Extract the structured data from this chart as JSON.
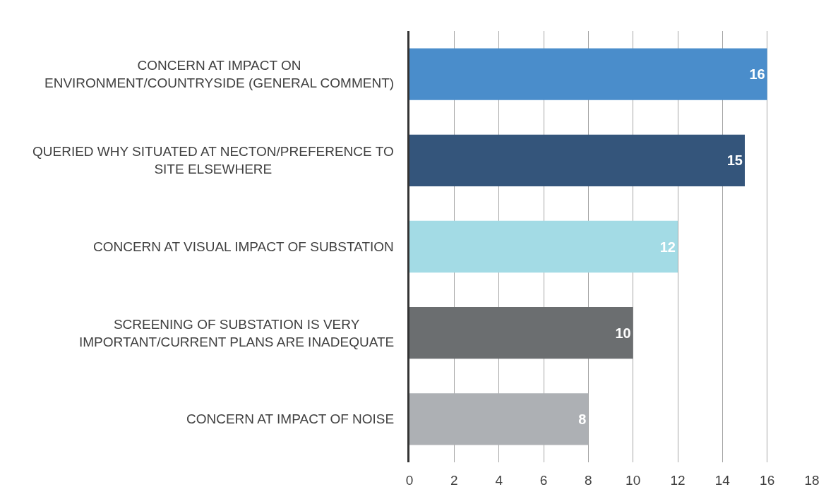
{
  "chart_data": {
    "type": "bar",
    "orientation": "horizontal",
    "categories": [
      "CONCERN AT IMPACT ON ENVIRONMENT/COUNTRYSIDE (GENERAL COMMENT)",
      "QUERIED WHY SITUATED AT NECTON/PREFERENCE TO SITE ELSEWHERE",
      "CONCERN AT VISUAL IMPACT OF SUBSTATION",
      "SCREENING OF SUBSTATION IS VERY IMPORTANT/CURRENT PLANS ARE INADEQUATE",
      "CONCERN AT IMPACT OF NOISE"
    ],
    "values": [
      16,
      15,
      12,
      10,
      8
    ],
    "colors": [
      "#4a8dcb",
      "#34557b",
      "#a3dbe5",
      "#6b6e70",
      "#adb0b4"
    ],
    "xlim": [
      0,
      18
    ],
    "xticks": [
      0,
      2,
      4,
      6,
      8,
      10,
      12,
      14,
      16,
      18
    ],
    "grid": "x",
    "data_labels": true
  }
}
